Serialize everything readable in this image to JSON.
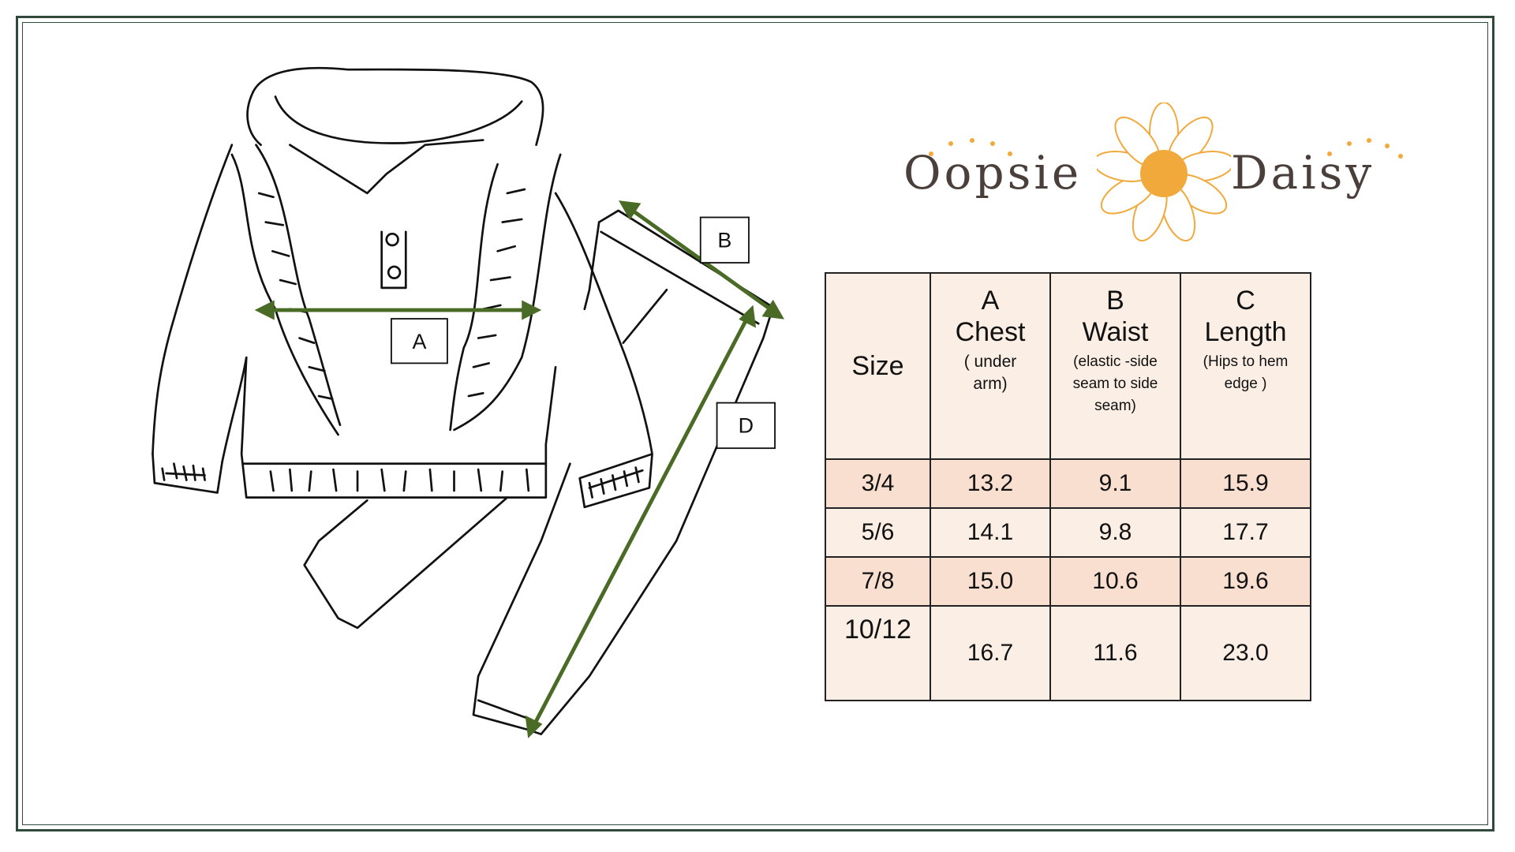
{
  "brand": {
    "name_left": "Oopsie",
    "name_right": "Daisy"
  },
  "diagram_labels": {
    "a": "A",
    "b": "B",
    "d": "D"
  },
  "colors": {
    "arrow": "#4a6b25",
    "frame": "#2f4a3a",
    "header_bg": "#fbeee5",
    "shade_bg": "#f8dfcf",
    "logo_orange": "#f2a93b",
    "logo_text": "#4a3f3b"
  },
  "table": {
    "headers": [
      {
        "letter": "",
        "title": "Size",
        "note": ""
      },
      {
        "letter": "A",
        "title": "Chest",
        "note": "( under arm)"
      },
      {
        "letter": "B",
        "title": "Waist",
        "note": "(elastic -side seam to side seam)"
      },
      {
        "letter": "C",
        "title": "Length",
        "note": "(Hips to hem edge )"
      }
    ],
    "rows": [
      [
        "3/4",
        "13.2",
        "9.1",
        "15.9"
      ],
      [
        "5/6",
        "14.1",
        "9.8",
        "17.7"
      ],
      [
        "7/8",
        "15.0",
        "10.6",
        "19.6"
      ],
      [
        "10/12",
        "16.7",
        "11.6",
        "23.0"
      ]
    ]
  }
}
